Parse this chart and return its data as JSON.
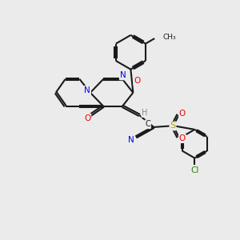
{
  "background_color": "#ebebeb",
  "line_color": "#1a1a1a",
  "bond_width": 1.5,
  "colors": {
    "N": "#0000ee",
    "O": "#ee0000",
    "S": "#aaaa00",
    "Cl": "#228800",
    "H": "#888888"
  }
}
